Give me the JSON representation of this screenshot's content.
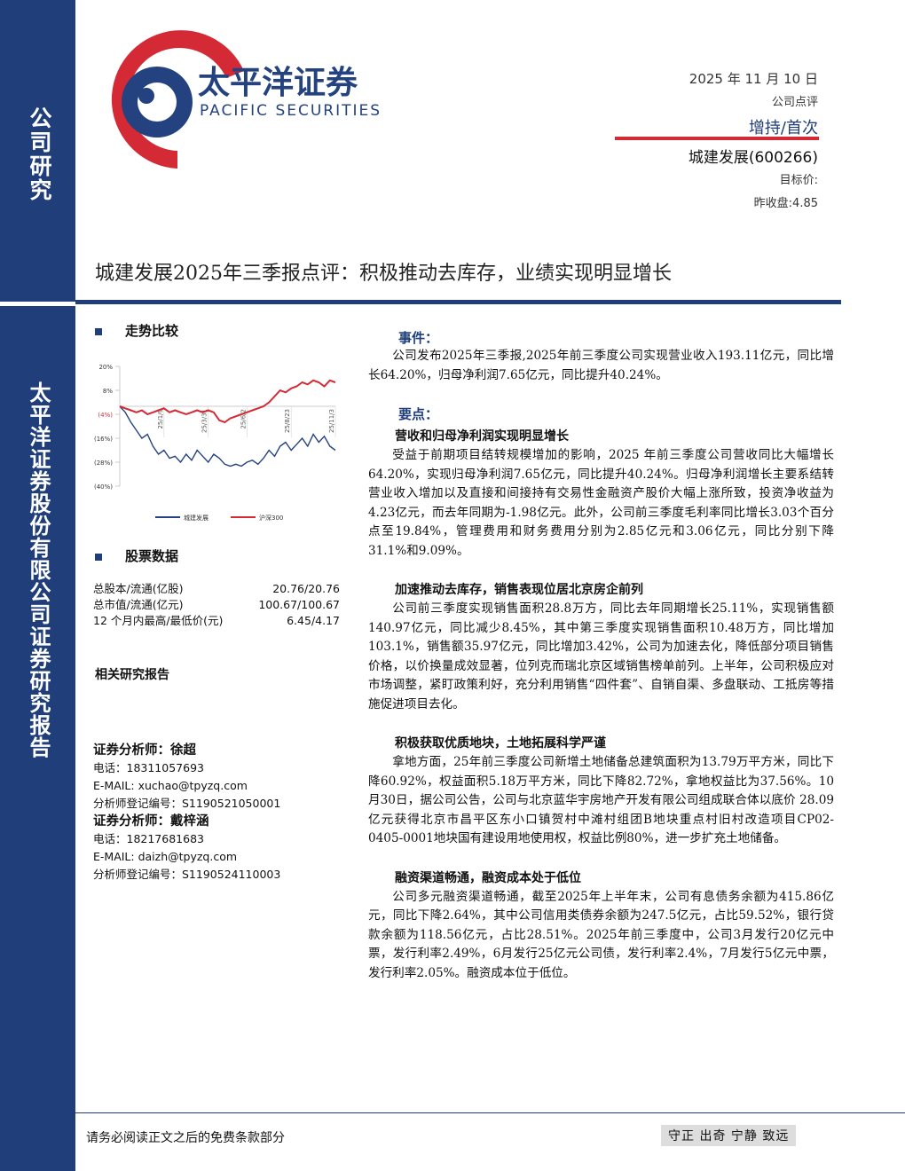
{
  "sidebar": {
    "top": "公司研究",
    "bottom": "太平洋证券股份有限公司证券研究报告"
  },
  "logo": {
    "name": "太平洋证券",
    "english": "PACIFIC SECURITIES"
  },
  "header": {
    "date": "2025 年 11 月 10 日",
    "type": "公司点评",
    "rating": "增持/首次",
    "stock": "城建发展(600266)",
    "target": "目标价:",
    "close": "昨收盘:4.85"
  },
  "title": "城建发展2025年三季报点评：积极推动去库存，业绩实现明显增长",
  "trend": {
    "heading": "走势比较"
  },
  "chart_data": {
    "type": "line",
    "categories": [
      null,
      null,
      null,
      null,
      null,
      null,
      null,
      null,
      "25/1/9",
      null,
      null,
      null,
      null,
      null,
      null,
      null,
      "25/3/31",
      null,
      null,
      null,
      null,
      null,
      null,
      "25/6/2",
      null,
      null,
      null,
      null,
      null,
      null,
      null,
      "25/8/23",
      null,
      null,
      null,
      null,
      null,
      null,
      null,
      "25/11/3"
    ],
    "series": [
      {
        "name": "城建发展",
        "color": "#24427f",
        "values": [
          0,
          -3,
          -8,
          -12,
          -16,
          -14,
          -20,
          -24,
          -22,
          -26,
          -25,
          -28,
          -24,
          -27,
          -22,
          -25,
          -28,
          -24,
          -26,
          -29,
          -30,
          -29,
          -30,
          -28,
          -27,
          -29,
          -26,
          -22,
          -25,
          -20,
          -18,
          -22,
          -19,
          -16,
          -20,
          -14,
          -18,
          -15,
          -20,
          -22
        ]
      },
      {
        "name": "沪深300",
        "color": "#d42a35",
        "values": [
          0,
          -1,
          -2,
          -3,
          -2,
          -4,
          -3,
          -2,
          -1,
          -3,
          -2,
          -3,
          -4,
          -3,
          -2,
          -3,
          -2,
          -3,
          -7,
          -8,
          -6,
          -5,
          -4,
          -3,
          -2,
          -1,
          0,
          2,
          5,
          8,
          7,
          9,
          10,
          12,
          11,
          13,
          12,
          10,
          13,
          12
        ]
      }
    ],
    "ylim": [
      -40,
      20
    ],
    "yticks": [
      {
        "value": 20,
        "label": "20%"
      },
      {
        "value": 8,
        "label": "8%"
      },
      {
        "value": -4,
        "label": "(4%)"
      },
      {
        "value": -16,
        "label": "(16%)"
      },
      {
        "value": -28,
        "label": "(28%)"
      },
      {
        "value": -40,
        "label": "(40%)"
      }
    ]
  },
  "stock_data": {
    "heading": "股票数据",
    "rows": [
      [
        "总股本/流通(亿股)",
        "20.76/20.76"
      ],
      [
        "总市值/流通(亿元)",
        "100.67/100.67"
      ],
      [
        "12 个月内最高/最低价(元)",
        "6.45/4.17"
      ]
    ]
  },
  "related": "相关研究报告",
  "analysts": [
    {
      "name": "证券分析师：徐超",
      "phone": "电话：18311057693",
      "email": "E-MAIL: xuchao@tpyzq.com",
      "reg": "分析师登记编号：S1190521050001"
    },
    {
      "name": "证券分析师：戴梓涵",
      "phone": "电话：18217681683",
      "email": "E-MAIL: daizh@tpyzq.com",
      "reg": "分析师登记编号：S1190524110003"
    }
  ],
  "body": {
    "event_heading": "事件：",
    "event": "公司发布2025年三季报,2025年前三季度公司实现营业收入193.11亿元，同比增长64.20%，归母净利润7.65亿元，同比提升40.24%。",
    "points_heading": "要点：",
    "sections": [
      {
        "heading": "营收和归母净利润实现明显增长",
        "text": "受益于前期项目结转规模增加的影响，2025 年前三季度公司营收同比大幅增长64.20%，实现归母净利润7.65亿元，同比提升40.24%。归母净利润增长主要系结转营业收入增加以及直接和间接持有交易性金融资产股价大幅上涨所致，投资净收益为4.23亿元，而去年同期为-1.98亿元。此外，公司前三季度毛利率同比增长3.03个百分点至19.84%，管理费用和财务费用分别为2.85亿元和3.06亿元，同比分别下降 31.1%和9.09%。"
      },
      {
        "heading": "加速推动去库存，销售表现位居北京房企前列",
        "text": "公司前三季度实现销售面积28.8万方，同比去年同期增长25.11%，实现销售额140.97亿元，同比减少8.45%，其中第三季度实现销售面积10.48万方，同比增加103.1%，销售额35.97亿元，同比增加3.42%，公司为加速去化，降低部分项目销售价格，以价换量成效显著，位列克而瑞北京区域销售榜单前列。上半年，公司积极应对市场调整，紧盯政策利好，充分利用销售“四件套”、自销自渠、多盘联动、工抵房等措施促进项目去化。"
      },
      {
        "heading": "积极获取优质地块，土地拓展科学严谨",
        "text": "拿地方面，25年前三季度公司新增土地储备总建筑面积为13.79万平方米，同比下降60.92%，权益面积5.18万平方米，同比下降82.72%，拿地权益比为37.56%。10月30日，据公司公告，公司与北京蓝华宇房地产开发有限公司组成联合体以底价 28.09 亿元获得北京市昌平区东小口镇贺村中滩村组团B地块重点村旧村改造项目CP02-0405-0001地块国有建设用地使用权，权益比例80%，进一步扩充土地储备。"
      },
      {
        "heading": "融资渠道畅通，融资成本处于低位",
        "text": "公司多元融资渠道畅通，截至2025年上半年末，公司有息债务余额为415.86亿元，同比下降2.64%，其中公司信用类债券余额为247.5亿元，占比59.52%，银行贷款余额为118.56亿元，占比28.51%。2025年前三季度中，公司3月发行20亿元中票，发行利率2.49%，6月发行25亿元公司债，发行利率2.4%，7月发行5亿元中票，发行利率2.05%。融资成本位于低位。"
      }
    ]
  },
  "footer": {
    "disclaimer": "请务必阅读正文之后的免费条款部分",
    "motto": "守正 出奇 宁静 致远"
  }
}
